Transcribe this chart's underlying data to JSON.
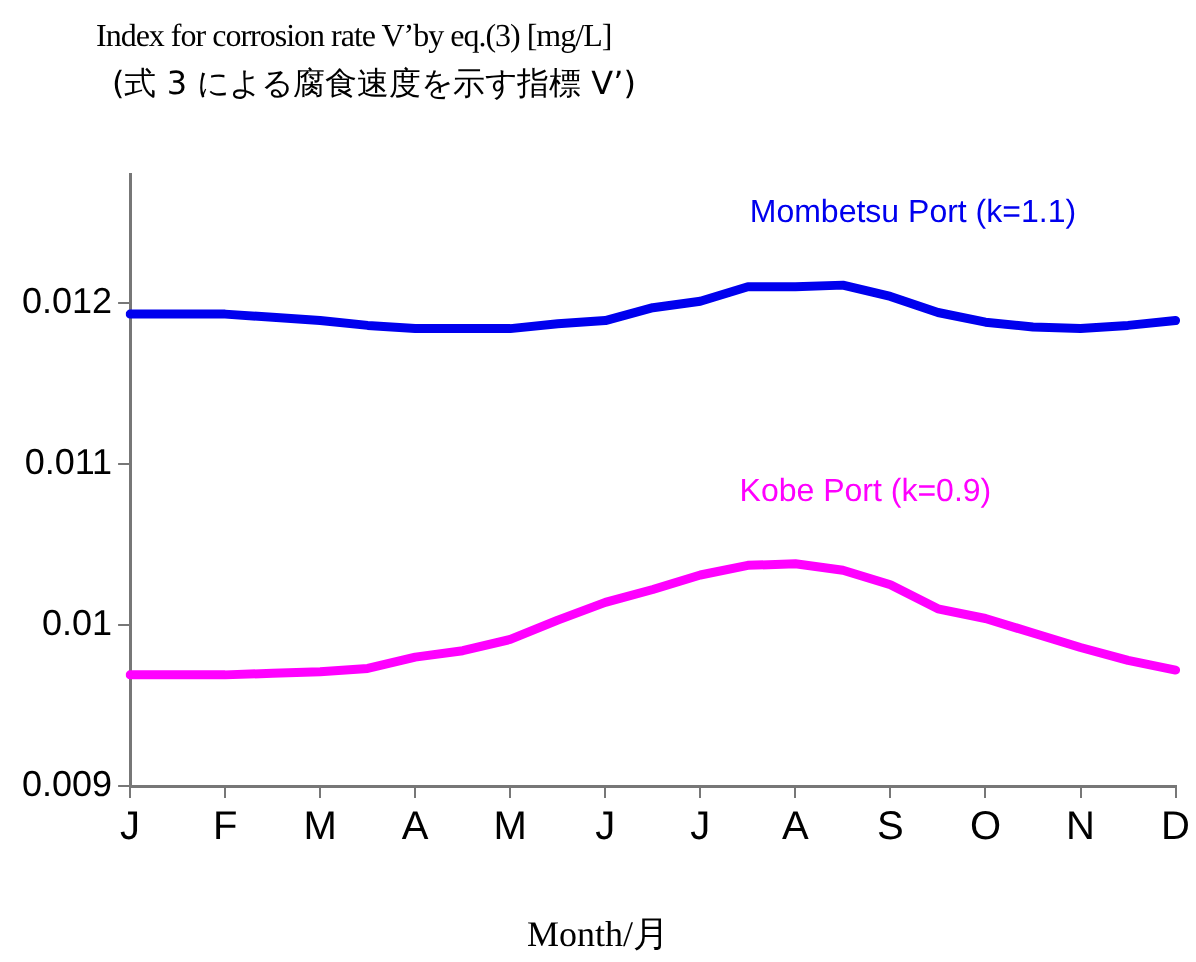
{
  "chart_data": {
    "type": "line",
    "title": "Index for corrosion rate V’by eq.(3) [mg/L]",
    "subtitle": "(式 3 による腐食速度を示す指標 V’)",
    "xlabel": "Month/月",
    "categories": [
      "J",
      null,
      "F",
      null,
      "M",
      null,
      "A",
      null,
      "M",
      null,
      "J",
      null,
      "J",
      null,
      "A",
      null,
      "S",
      null,
      "O",
      null,
      "N",
      null,
      "D"
    ],
    "ylim": [
      0.009,
      0.0128
    ],
    "yticks": [
      0.009,
      0.01,
      0.011,
      0.012
    ],
    "grid": false,
    "legend": false,
    "marker": "none",
    "line_style": "solid",
    "series": [
      {
        "name": "Mombetsu Port (k=1.1)",
        "color": "#0000ee",
        "values": [
          0.01193,
          0.01193,
          0.01193,
          0.01191,
          0.01189,
          0.01186,
          0.01184,
          0.01184,
          0.01184,
          0.01187,
          0.01189,
          0.01197,
          0.01201,
          0.0121,
          0.0121,
          0.01211,
          0.01204,
          0.01194,
          0.01188,
          0.01185,
          0.01184,
          0.01186,
          0.01189
        ]
      },
      {
        "name": "Kobe Port (k=0.9)",
        "color": "#ff00ff",
        "values": [
          0.00969,
          0.00969,
          0.00969,
          0.0097,
          0.00971,
          0.00973,
          0.0098,
          0.00984,
          0.00991,
          0.01003,
          0.01014,
          0.01022,
          0.01031,
          0.01037,
          0.01038,
          0.01034,
          0.01025,
          0.0101,
          0.01004,
          0.00995,
          0.00986,
          0.00978,
          0.00972
        ]
      }
    ]
  }
}
